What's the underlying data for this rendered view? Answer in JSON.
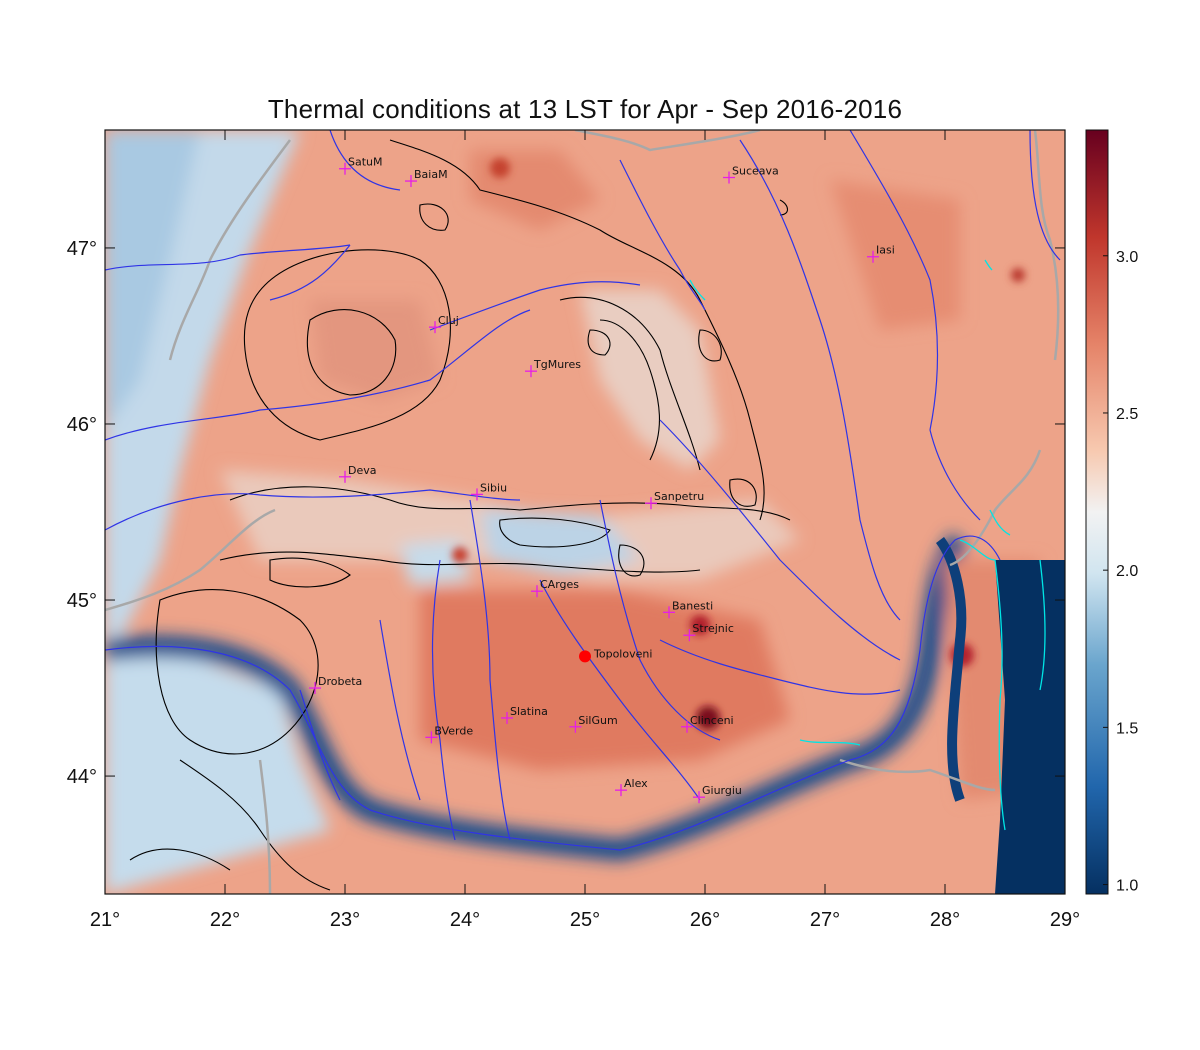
{
  "title": "Thermal conditions at 13 LST for Apr - Sep  2016-2016",
  "map": {
    "lon_range": [
      21,
      29
    ],
    "lat_range": [
      43.33,
      47.67
    ],
    "lon_ticks": [
      "21°",
      "22°",
      "23°",
      "24°",
      "25°",
      "26°",
      "27°",
      "28°",
      "29°"
    ],
    "lon_tick_values": [
      21,
      22,
      23,
      24,
      25,
      26,
      27,
      28,
      29
    ],
    "lat_ticks": [
      "44°",
      "45°",
      "46°",
      "47°"
    ],
    "lat_tick_values": [
      44,
      45,
      46,
      47
    ],
    "colors": {
      "low": "#053061",
      "mid_low": "#6aa5cd",
      "neutral": "#f2f2f2",
      "mid_high": "#e58368",
      "high": "#67001f",
      "rivers": "#2f34e6",
      "borders": "#a8a8a8",
      "coast": "#00e5e5",
      "station_marker": "#e61fe6",
      "highlight_marker": "#ff0000",
      "contours": "#000000"
    },
    "highlight_station": {
      "name": "Topoloveni",
      "lon": 25.0,
      "lat": 44.68
    },
    "stations": [
      {
        "name": "SatuM",
        "lon": 23.0,
        "lat": 47.45
      },
      {
        "name": "BaiaM",
        "lon": 23.55,
        "lat": 47.38
      },
      {
        "name": "Suceava",
        "lon": 26.2,
        "lat": 47.4
      },
      {
        "name": "Iasi",
        "lon": 27.4,
        "lat": 46.95
      },
      {
        "name": "Cluj",
        "lon": 23.75,
        "lat": 46.55
      },
      {
        "name": "TgMures",
        "lon": 24.55,
        "lat": 46.3
      },
      {
        "name": "Deva",
        "lon": 23.0,
        "lat": 45.7
      },
      {
        "name": "Sibiu",
        "lon": 24.1,
        "lat": 45.6
      },
      {
        "name": "Sanpetru",
        "lon": 25.55,
        "lat": 45.55
      },
      {
        "name": "CArges",
        "lon": 24.6,
        "lat": 45.05
      },
      {
        "name": "Banesti",
        "lon": 25.7,
        "lat": 44.93
      },
      {
        "name": "Strejnic",
        "lon": 25.87,
        "lat": 44.8
      },
      {
        "name": "Drobeta",
        "lon": 22.75,
        "lat": 44.5
      },
      {
        "name": "Slatina",
        "lon": 24.35,
        "lat": 44.33
      },
      {
        "name": "SilGum",
        "lon": 24.92,
        "lat": 44.28
      },
      {
        "name": "Clinceni",
        "lon": 25.85,
        "lat": 44.28
      },
      {
        "name": "BVerde",
        "lon": 23.72,
        "lat": 44.22
      },
      {
        "name": "Alex",
        "lon": 25.3,
        "lat": 43.92
      },
      {
        "name": "Giurgiu",
        "lon": 25.95,
        "lat": 43.88
      }
    ]
  },
  "colorbar": {
    "range": [
      0.97,
      3.4
    ],
    "ticks": [
      "1.0",
      "1.5",
      "2.0",
      "2.5",
      "3.0"
    ],
    "tick_values": [
      1.0,
      1.5,
      2.0,
      2.5,
      3.0
    ]
  }
}
